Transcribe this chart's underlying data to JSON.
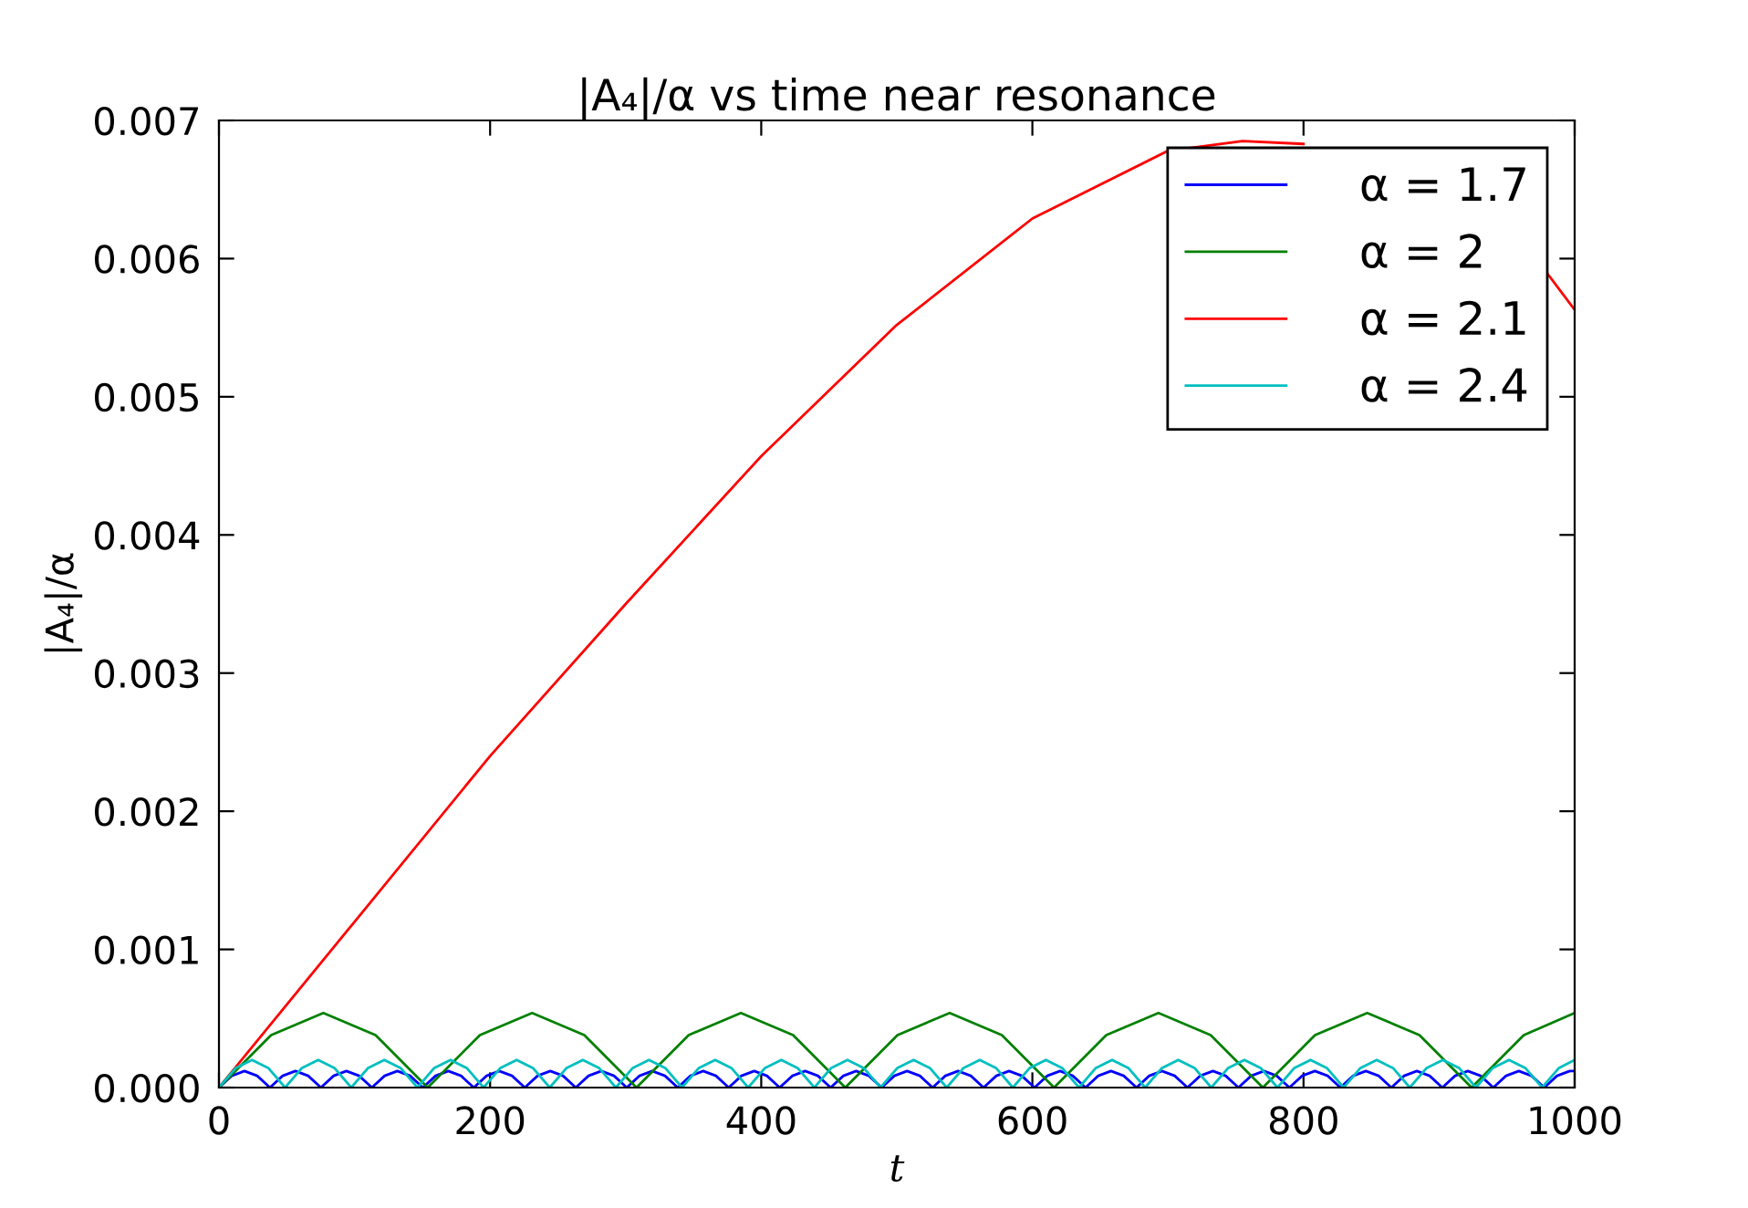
{
  "chart_data": {
    "type": "line",
    "title": "|A₄|/α vs time near resonance",
    "xlabel": "t",
    "ylabel": "|A₄|/α",
    "xlim": [
      0,
      1000
    ],
    "xticks": [
      0,
      200,
      400,
      600,
      800,
      1000
    ],
    "ylim": [
      0,
      0.007
    ],
    "yticks": [
      {
        "value": 0,
        "label": "0.000"
      },
      {
        "value": 0.001,
        "label": "0.001"
      },
      {
        "value": 0.002,
        "label": "0.002"
      },
      {
        "value": 0.003,
        "label": "0.003"
      },
      {
        "value": 0.004,
        "label": "0.004"
      },
      {
        "value": 0.005,
        "label": "0.005"
      },
      {
        "value": 0.006,
        "label": "0.006"
      },
      {
        "value": 0.007,
        "label": "0.007"
      }
    ],
    "grid": false,
    "legend": "top right",
    "line_style": "solid",
    "marker": "none",
    "series": [
      {
        "name": "α = 1.7",
        "color": "#0000ff",
        "x": [
          0,
          9.4,
          18.8,
          28.2,
          37.6,
          47,
          56.4,
          65.8,
          75.2,
          84.6,
          94,
          103.4,
          112.8,
          122.2,
          131.6,
          141,
          150.4,
          159.8,
          169.2,
          178.6,
          188,
          197.4,
          206.8,
          216.2,
          225.6,
          235,
          244.4,
          253.8,
          263.2,
          272.6,
          282,
          291.4,
          300.8,
          310.2,
          319.6,
          329,
          338.4,
          347.8,
          357.2,
          366.6,
          376,
          385.4,
          394.8,
          404.2,
          413.6,
          423,
          432.4,
          441.8,
          451.2,
          460.6,
          470,
          479.4,
          488.8,
          498.2,
          507.6,
          517,
          526.4,
          535.8,
          545.2,
          554.6,
          564,
          573.4,
          582.8,
          592.2,
          601.6,
          611,
          620.4,
          629.8,
          639.2,
          648.6,
          658,
          667.4,
          676.8,
          686.2,
          695.6,
          705,
          714.4,
          723.8,
          733.2,
          742.6,
          752,
          761.4,
          770.8,
          780.2,
          789.6,
          799,
          808.4,
          817.8,
          827.2,
          836.6,
          846,
          855.4,
          864.8,
          874.2,
          883.6,
          893,
          902.4,
          911.8,
          921.2,
          930.6,
          940,
          949.4,
          958.8,
          968.2,
          977.6,
          987,
          996.4,
          1000
        ],
        "values": [
          0,
          8.5e-05,
          0.00012,
          8.5e-05,
          0,
          8.5e-05,
          0.00012,
          8.5e-05,
          0,
          8.5e-05,
          0.00012,
          8.5e-05,
          0,
          8.5e-05,
          0.00012,
          8.5e-05,
          0,
          8.5e-05,
          0.00012,
          8.5e-05,
          0,
          8.5e-05,
          0.00012,
          8.5e-05,
          0,
          8.5e-05,
          0.00012,
          8.5e-05,
          0,
          8.5e-05,
          0.00012,
          8.5e-05,
          0,
          8.5e-05,
          0.00012,
          8.5e-05,
          0,
          8.5e-05,
          0.00012,
          8.5e-05,
          0,
          8.5e-05,
          0.00012,
          8.5e-05,
          0,
          8.5e-05,
          0.00012,
          8.5e-05,
          0,
          8.5e-05,
          0.00012,
          8.5e-05,
          0,
          8.5e-05,
          0.00012,
          8.5e-05,
          0,
          8.5e-05,
          0.00012,
          8.5e-05,
          0,
          8.5e-05,
          0.00012,
          8.5e-05,
          0,
          8.5e-05,
          0.00012,
          8.5e-05,
          0,
          8.5e-05,
          0.00012,
          8.5e-05,
          0,
          8.5e-05,
          0.00012,
          8.5e-05,
          0,
          8.5e-05,
          0.00012,
          8.5e-05,
          0,
          8.5e-05,
          0.00012,
          8.5e-05,
          0,
          8.5e-05,
          0.00012,
          8.5e-05,
          0,
          8.5e-05,
          0.00012,
          8.5e-05,
          0,
          8.5e-05,
          0.00012,
          8.5e-05,
          0,
          8.5e-05,
          0.00012,
          8.5e-05,
          0,
          8.5e-05,
          0.00012,
          8.5e-05,
          0,
          8.5e-05,
          0.00012,
          0.000119
        ]
      },
      {
        "name": "α = 2",
        "color": "#008000",
        "x": [
          0,
          38.5,
          77,
          115.5,
          154,
          192.5,
          231,
          269.5,
          308,
          346.5,
          385,
          423.5,
          462,
          500.5,
          539,
          577.5,
          616,
          654.5,
          693,
          731.5,
          770,
          808.5,
          847,
          885.5,
          924,
          962.5,
          1000
        ],
        "values": [
          0,
          0.00038,
          0.00054,
          0.00038,
          0,
          0.00038,
          0.00054,
          0.00038,
          0,
          0.00038,
          0.00054,
          0.00038,
          0,
          0.00038,
          0.00054,
          0.00038,
          0,
          0.00038,
          0.00054,
          0.00038,
          0,
          0.00038,
          0.00054,
          0.00038,
          0,
          0.00038,
          0.00054
        ]
      },
      {
        "name": "α = 2.1",
        "color": "#ff0000",
        "x": [
          0,
          50,
          100,
          200,
          300,
          400,
          500,
          600,
          700,
          755,
          800,
          900,
          950,
          980,
          1000
        ],
        "values": [
          0,
          0.0006,
          0.0012,
          0.0024,
          0.0035,
          0.00457,
          0.00552,
          0.00629,
          0.00678,
          0.00685,
          0.00683,
          null,
          null,
          0.00589,
          0.00563
        ]
      },
      {
        "name": "α = 2.4",
        "color": "#00bfbf",
        "x": [
          0,
          12.2,
          24.4,
          36.6,
          48.8,
          61,
          73.2,
          85.4,
          97.6,
          109.8,
          122,
          134.2,
          146.4,
          158.6,
          170.8,
          183,
          195.2,
          207.4,
          219.6,
          231.8,
          244,
          256.2,
          268.4,
          280.6,
          292.8,
          305,
          317.2,
          329.4,
          341.6,
          353.8,
          366,
          378.2,
          390.4,
          402.6,
          414.8,
          427,
          439.2,
          451.4,
          463.6,
          475.8,
          488,
          500.2,
          512.4,
          524.6,
          536.8,
          549,
          561.2,
          573.4,
          585.6,
          597.8,
          610,
          622.2,
          634.4,
          646.6,
          658.8,
          671,
          683.2,
          695.4,
          707.6,
          719.8,
          732,
          744.2,
          756.4,
          768.6,
          780.8,
          793,
          805.2,
          817.4,
          829.6,
          841.8,
          854,
          866.2,
          878.4,
          890.6,
          902.8,
          915,
          927.2,
          939.4,
          951.6,
          963.8,
          976,
          988.2,
          1000
        ],
        "values": [
          0,
          0.00014,
          0.0002,
          0.00014,
          0,
          0.00014,
          0.0002,
          0.00014,
          0,
          0.00014,
          0.0002,
          0.00014,
          0,
          0.00014,
          0.0002,
          0.00014,
          0,
          0.00014,
          0.0002,
          0.00014,
          0,
          0.00014,
          0.0002,
          0.00014,
          0,
          0.00014,
          0.0002,
          0.00014,
          0,
          0.00014,
          0.0002,
          0.00014,
          0,
          0.00014,
          0.0002,
          0.00014,
          0,
          0.00014,
          0.0002,
          0.00014,
          0,
          0.00014,
          0.0002,
          0.00014,
          0,
          0.00014,
          0.0002,
          0.00014,
          0,
          0.00014,
          0.0002,
          0.00014,
          0,
          0.00014,
          0.0002,
          0.00014,
          0,
          0.00014,
          0.0002,
          0.00014,
          0,
          0.00014,
          0.0002,
          0.00014,
          0,
          0.00014,
          0.0002,
          0.00014,
          0,
          0.00014,
          0.0002,
          0.00014,
          0,
          0.00014,
          0.0002,
          0.00014,
          0,
          0.00014,
          0.0002,
          0.00014,
          0,
          0.00014,
          0.0002
        ]
      }
    ]
  }
}
